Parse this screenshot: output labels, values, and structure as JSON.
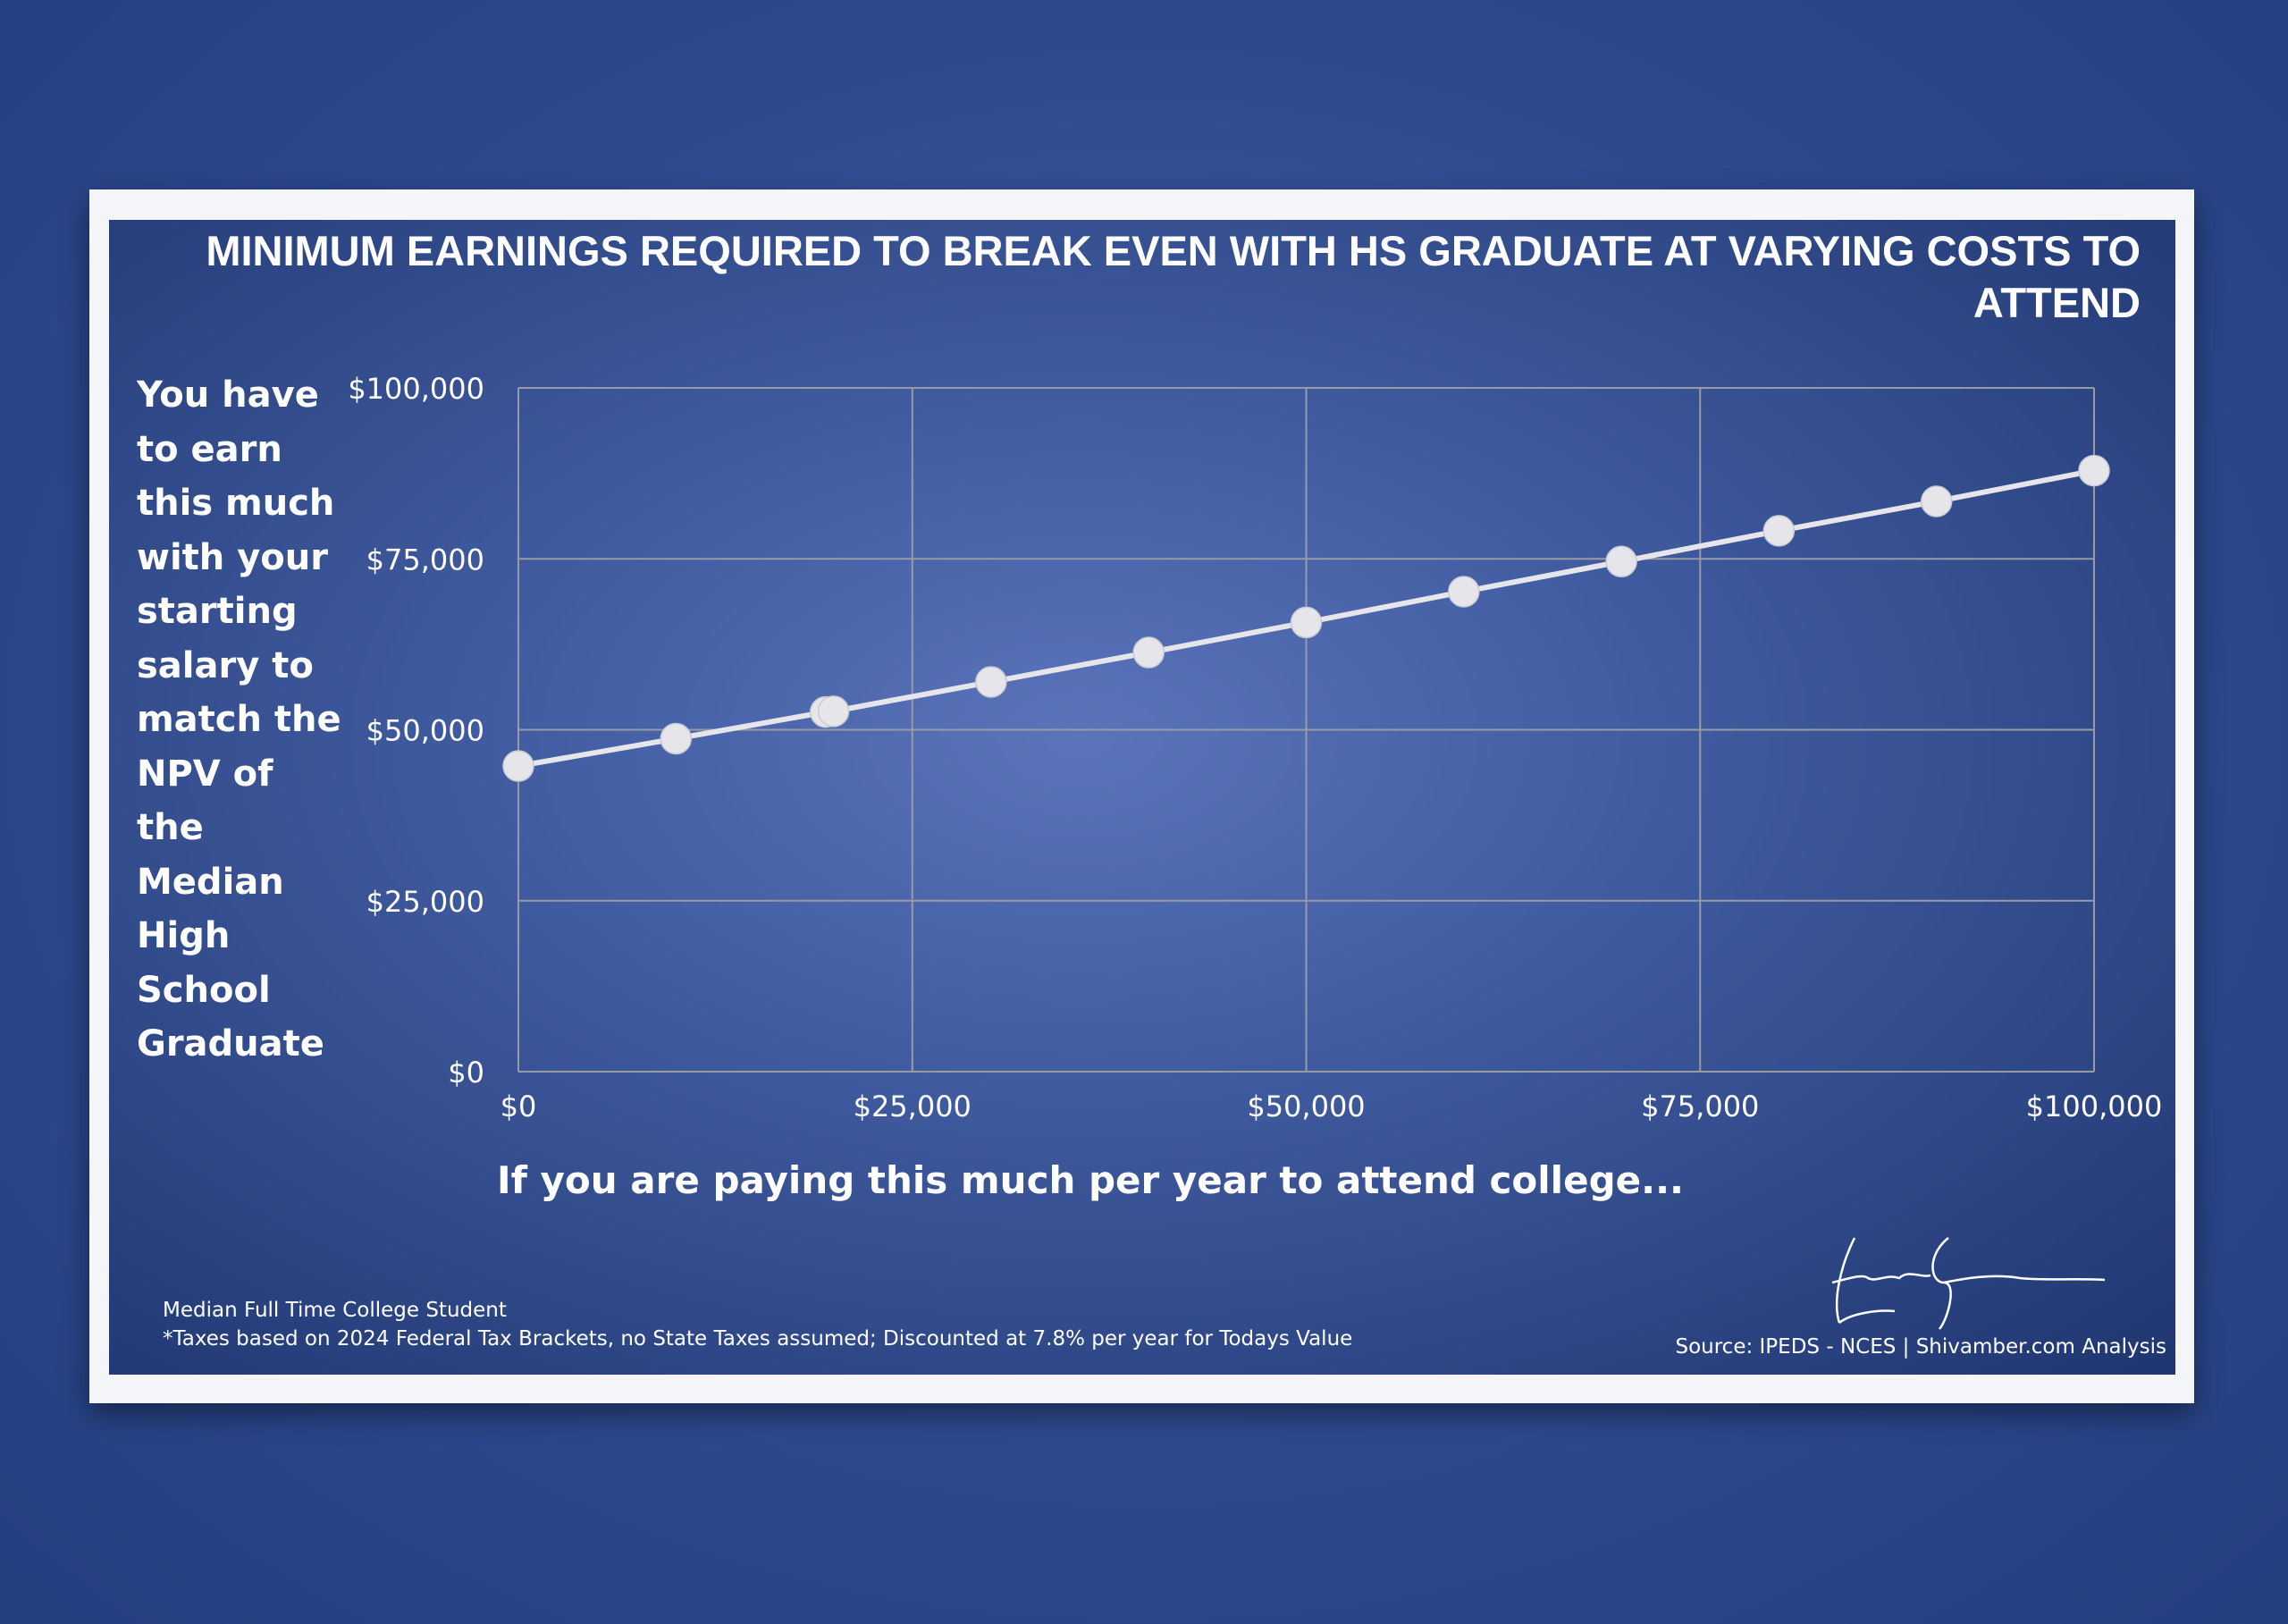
{
  "chart_data": {
    "type": "line",
    "title": "MINIMUM EARNINGS REQUIRED TO BREAK EVEN WITH HS GRADUATE AT VARYING COSTS TO ATTEND",
    "xlabel": "If you are paying this much per year to attend college...",
    "ylabel": "You have to earn this much with your starting salary to match the NPV of the Median High School Graduate",
    "xlim": [
      0,
      100000
    ],
    "ylim": [
      0,
      100000
    ],
    "x_ticks": [
      "$0",
      "$25,000",
      "$50,000",
      "$75,000",
      "$100,000"
    ],
    "y_ticks": [
      "$0",
      "$25,000",
      "$50,000",
      "$75,000",
      "$100,000"
    ],
    "grid": true,
    "line_color": "#e6e6ea",
    "points": [
      {
        "x": 0,
        "y": 44700
      },
      {
        "x": 10000,
        "y": 48700
      },
      {
        "x": 19500,
        "y": 52600
      },
      {
        "x": 20000,
        "y": 52700
      },
      {
        "x": 30000,
        "y": 57000
      },
      {
        "x": 40000,
        "y": 61300
      },
      {
        "x": 50000,
        "y": 65700
      },
      {
        "x": 60000,
        "y": 70200
      },
      {
        "x": 70000,
        "y": 74600
      },
      {
        "x": 80000,
        "y": 79100
      },
      {
        "x": 90000,
        "y": 83400
      },
      {
        "x": 100000,
        "y": 87900
      }
    ]
  },
  "notes": {
    "line1": "Median Full Time College Student",
    "line2": "*Taxes based on 2024 Federal Tax Brackets, no State Taxes assumed; Discounted at 7.8% per year for Todays Value"
  },
  "source": "Source: IPEDS - NCES | Shivamber.com Analysis",
  "signature": "Shivamber"
}
